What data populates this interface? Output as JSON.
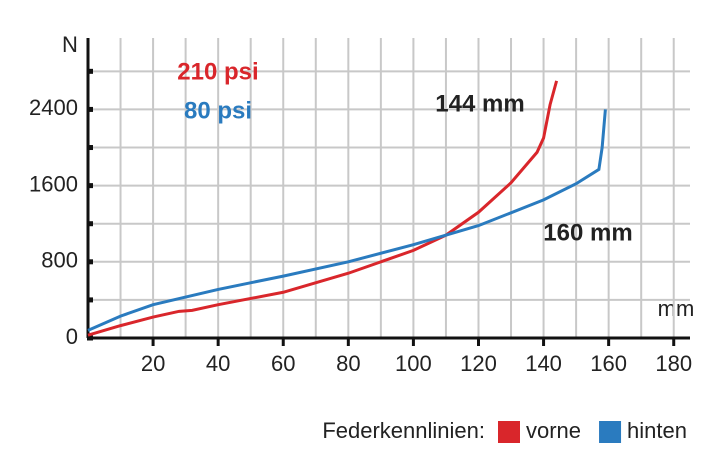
{
  "chart_data": {
    "type": "line",
    "y_label": "N",
    "x_label": "mm",
    "annotations": [
      {
        "text": "210 psi",
        "color": "#d9262b"
      },
      {
        "text": "80 psi",
        "color": "#2a7bbf"
      },
      {
        "text": "144 mm",
        "color": "#222222"
      },
      {
        "text": "160 mm",
        "color": "#222222"
      }
    ],
    "legend_title": "Federkennlinien:",
    "series": [
      {
        "name": "vorne",
        "color": "#d9262b",
        "x": [
          0,
          10,
          20,
          28,
          32,
          40,
          60,
          80,
          100,
          110,
          120,
          130,
          138,
          140,
          142,
          144
        ],
        "values": [
          30,
          130,
          220,
          280,
          290,
          350,
          480,
          680,
          920,
          1080,
          1320,
          1630,
          1950,
          2100,
          2450,
          2700
        ]
      },
      {
        "name": "hinten",
        "color": "#2a7bbf",
        "x": [
          0,
          10,
          20,
          40,
          60,
          80,
          100,
          120,
          140,
          150,
          157,
          158,
          159
        ],
        "values": [
          80,
          230,
          350,
          510,
          650,
          800,
          980,
          1180,
          1450,
          1620,
          1770,
          2000,
          2400
        ]
      }
    ],
    "xlim": [
      0,
      185
    ],
    "xticks": [
      20,
      40,
      60,
      80,
      100,
      120,
      140,
      160,
      180
    ],
    "xminor": [
      10,
      30,
      50,
      70,
      90,
      110,
      130,
      150,
      170
    ],
    "ylim": [
      0,
      3150
    ],
    "yticks": [
      0,
      800,
      1600,
      2400
    ],
    "yminor": [
      400,
      1200,
      2000,
      2800
    ],
    "grid": true
  }
}
